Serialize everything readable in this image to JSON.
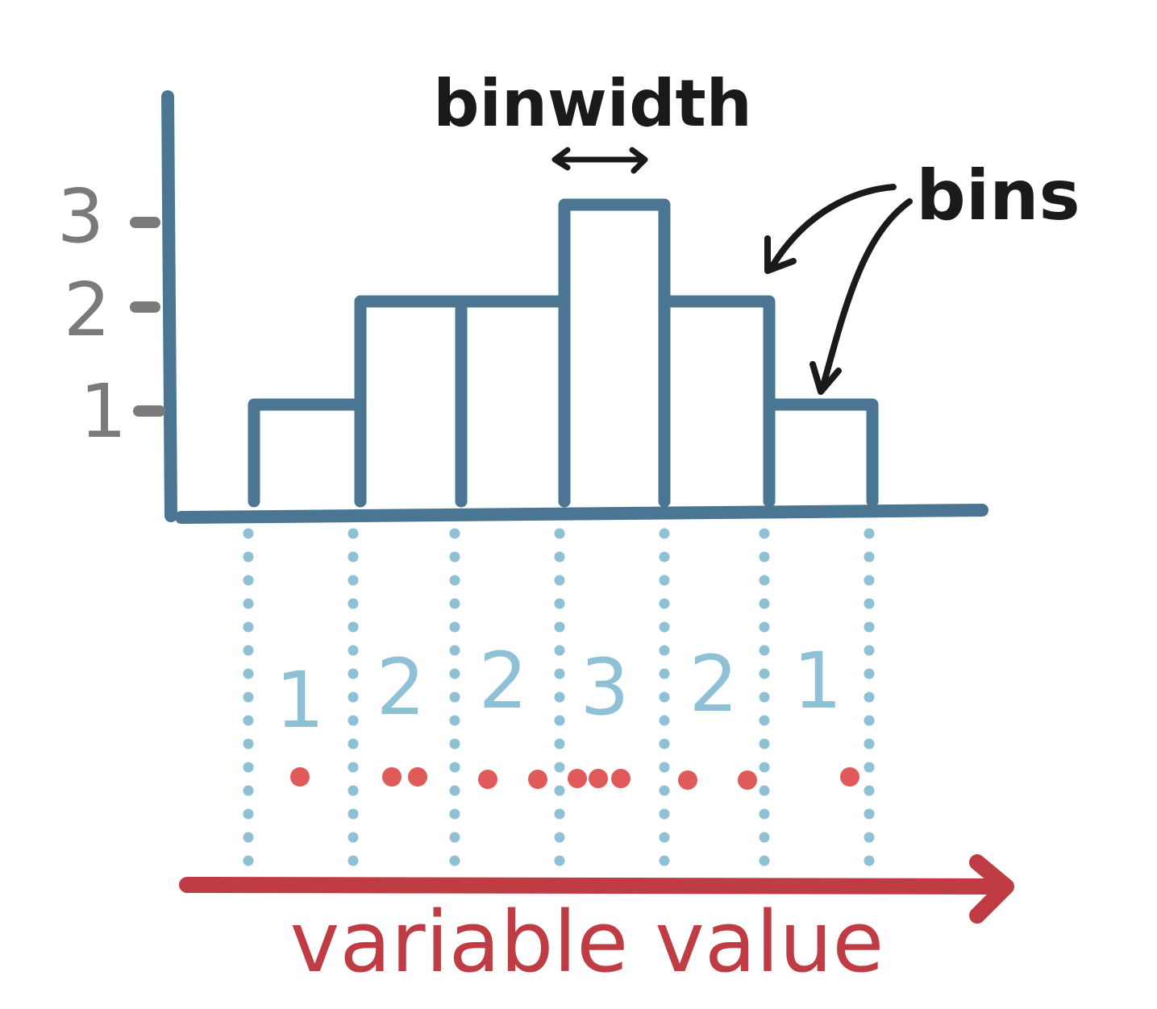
{
  "colors": {
    "bar_stroke": "#4a7694",
    "count_text": "#8fc1d6",
    "bin_edge_dots": "#8fc1d6",
    "data_points": "#e05a5a",
    "value_axis": "#c03c45",
    "annotation": "#1a1a1a",
    "tick_labels": "#7a7a7a"
  },
  "labels": {
    "binwidth": "binwidth",
    "bins": "bins",
    "x_axis": "variable value"
  },
  "chart_data": {
    "type": "bar",
    "bin_counts": [
      1,
      2,
      2,
      3,
      2,
      1
    ],
    "y_ticks": [
      "1",
      "2",
      "3"
    ],
    "ylim": [
      0,
      3
    ],
    "count_labels": [
      "1",
      "2",
      "2",
      "3",
      "2",
      "1"
    ],
    "data_points_per_bin": [
      1,
      2,
      2,
      3,
      2,
      1
    ],
    "xlabel": "variable value"
  }
}
